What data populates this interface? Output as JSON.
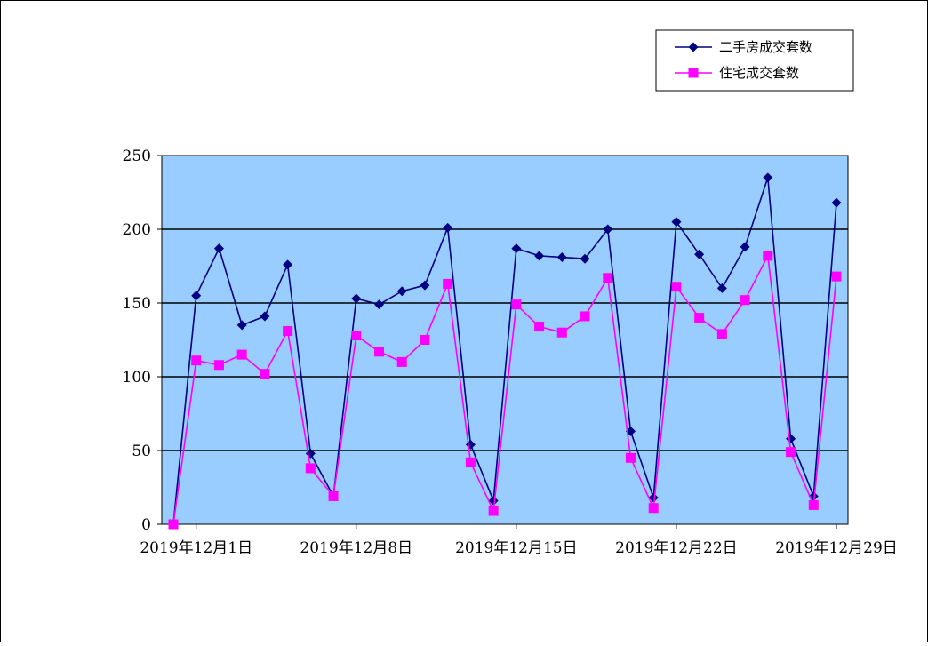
{
  "chart_data": {
    "type": "line",
    "title": "",
    "xlabel": "",
    "ylabel": "",
    "ylim": [
      0,
      250
    ],
    "yticks": [
      0,
      50,
      100,
      150,
      200,
      250
    ],
    "grid": true,
    "plot_background": "#99ccff",
    "legend_position": "top-right",
    "x": [
      "2019-11-30",
      "2019-12-01",
      "2019-12-02",
      "2019-12-03",
      "2019-12-04",
      "2019-12-05",
      "2019-12-06",
      "2019-12-07",
      "2019-12-08",
      "2019-12-09",
      "2019-12-10",
      "2019-12-11",
      "2019-12-12",
      "2019-12-13",
      "2019-12-14",
      "2019-12-15",
      "2019-12-16",
      "2019-12-17",
      "2019-12-18",
      "2019-12-19",
      "2019-12-20",
      "2019-12-21",
      "2019-12-22",
      "2019-12-23",
      "2019-12-24",
      "2019-12-25",
      "2019-12-26",
      "2019-12-27",
      "2019-12-28",
      "2019-12-29"
    ],
    "xtick_labels": [
      {
        "date": "2019-12-01",
        "label": "2019年12月1日"
      },
      {
        "date": "2019-12-08",
        "label": "2019年12月8日"
      },
      {
        "date": "2019-12-15",
        "label": "2019年12月15日"
      },
      {
        "date": "2019-12-22",
        "label": "2019年12月22日"
      },
      {
        "date": "2019-12-29",
        "label": "2019年12月29日"
      }
    ],
    "series": [
      {
        "name": "二手房成交套数",
        "color": "#000080",
        "marker": "diamond",
        "values": [
          0,
          155,
          187,
          135,
          141,
          176,
          48,
          19,
          153,
          149,
          158,
          162,
          201,
          54,
          16,
          187,
          182,
          181,
          180,
          200,
          63,
          18,
          205,
          183,
          160,
          188,
          235,
          58,
          19,
          218
        ]
      },
      {
        "name": "住宅成交套数",
        "color": "#ff00ff",
        "marker": "square",
        "values": [
          0,
          111,
          108,
          115,
          102,
          131,
          38,
          19,
          128,
          117,
          110,
          125,
          163,
          42,
          9,
          149,
          134,
          130,
          141,
          167,
          45,
          11,
          161,
          140,
          129,
          152,
          182,
          49,
          13,
          168
        ]
      }
    ]
  }
}
